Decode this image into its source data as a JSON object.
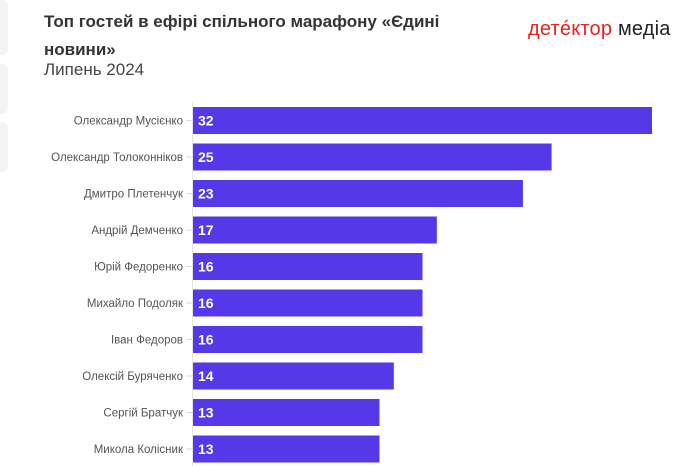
{
  "header": {
    "title": "Топ гостей в ефірі спільного марафону «Єдині новини»",
    "subtitle": "Липень 2024",
    "logo": {
      "part1": "детéктор",
      "part2": "медіа",
      "part1_color": "#e8231f"
    }
  },
  "chart_data": {
    "type": "bar",
    "orientation": "horizontal",
    "title": "Топ гостей в ефірі спільного марафону «Єдині новини»",
    "subtitle": "Липень 2024",
    "categories": [
      "Олександр Мусієнко",
      "Олександр Толоконніков",
      "Дмитро Плетенчук",
      "Андрій Демченко",
      "Юрій Федоренко",
      "Михайло Подоляк",
      "Іван Федоров",
      "Олексій Буряченко",
      "Сергій Братчук",
      "Микола Колісник"
    ],
    "values": [
      32,
      25,
      23,
      17,
      16,
      16,
      16,
      14,
      13,
      13
    ],
    "data_labels": true,
    "bar_color": "#5538e8",
    "xlim": [
      0,
      32
    ],
    "grid": false,
    "legend": "none"
  }
}
